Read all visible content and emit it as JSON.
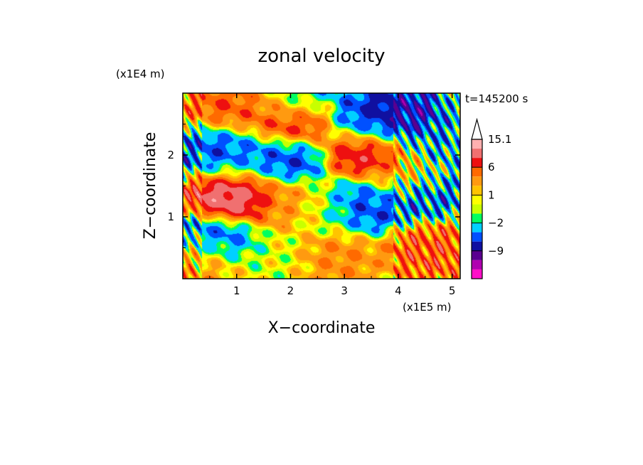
{
  "chart_data": {
    "type": "heatmap",
    "title": "zonal velocity",
    "xlabel": "X−coordinate",
    "ylabel": "Z−coordinate",
    "x_scale_note": "(x1E5 m)",
    "y_scale_note": "(x1E4 m)",
    "time_label": "t=145200 s",
    "xlim": [
      0,
      5.15
    ],
    "ylim": [
      0,
      3.0
    ],
    "x_ticks": [
      "1",
      "2",
      "3",
      "4",
      "5"
    ],
    "x_tick_values": [
      1,
      2,
      3,
      4,
      5
    ],
    "y_ticks": [
      "1",
      "2"
    ],
    "y_tick_values": [
      1,
      2
    ],
    "colorbar": {
      "tick_labels": [
        "15.1",
        "6",
        "1",
        "−2",
        "−9"
      ],
      "levels_top_to_bottom": [
        15.1,
        12,
        9,
        6,
        4,
        2,
        1,
        0,
        -1,
        -2,
        -4,
        -6,
        -9,
        -12,
        -15
      ],
      "colors_top_to_bottom": [
        "#ffb0b0",
        "#f07070",
        "#ee1010",
        "#ff6a00",
        "#ff9a10",
        "#ffc400",
        "#ffff00",
        "#c8ff00",
        "#00ff60",
        "#00d0ff",
        "#0050ff",
        "#1010a0",
        "#5a0090",
        "#b000b0",
        "#ff10c8"
      ],
      "extend": "max"
    },
    "field_features": [
      {
        "x": 0.95,
        "z": 1.38,
        "value": 12
      },
      {
        "x": 2.05,
        "z": 2.55,
        "value": 9
      },
      {
        "x": 3.35,
        "z": 2.05,
        "value": 9
      },
      {
        "x": 0.75,
        "z": 2.72,
        "value": 6
      },
      {
        "x": 1.6,
        "z": 2.85,
        "value": 6
      },
      {
        "x": 1.95,
        "z": 1.2,
        "value": 4
      },
      {
        "x": 0.4,
        "z": 0.3,
        "value": 4
      },
      {
        "x": 2.8,
        "z": 0.35,
        "value": 4
      },
      {
        "x": 4.6,
        "z": 0.45,
        "value": 6
      },
      {
        "x": 4.1,
        "z": 1.7,
        "value": 4
      },
      {
        "x": 1.75,
        "z": 0.35,
        "value": 0
      },
      {
        "x": 2.6,
        "z": 1.1,
        "value": -1
      },
      {
        "x": 3.4,
        "z": 2.55,
        "value": -6
      },
      {
        "x": 0.6,
        "z": 2.15,
        "value": -6
      },
      {
        "x": 1.05,
        "z": 1.92,
        "value": -4
      },
      {
        "x": 1.95,
        "z": 1.95,
        "value": -6
      },
      {
        "x": 3.35,
        "z": 1.2,
        "value": -6
      },
      {
        "x": 4.4,
        "z": 1.4,
        "value": -6
      },
      {
        "x": 0.65,
        "z": 0.58,
        "value": -6
      },
      {
        "x": 2.0,
        "z": 2.9,
        "value": -6
      },
      {
        "x": 4.0,
        "z": 2.65,
        "value": -9
      },
      {
        "x": 4.75,
        "z": 2.15,
        "value": -4
      }
    ]
  }
}
